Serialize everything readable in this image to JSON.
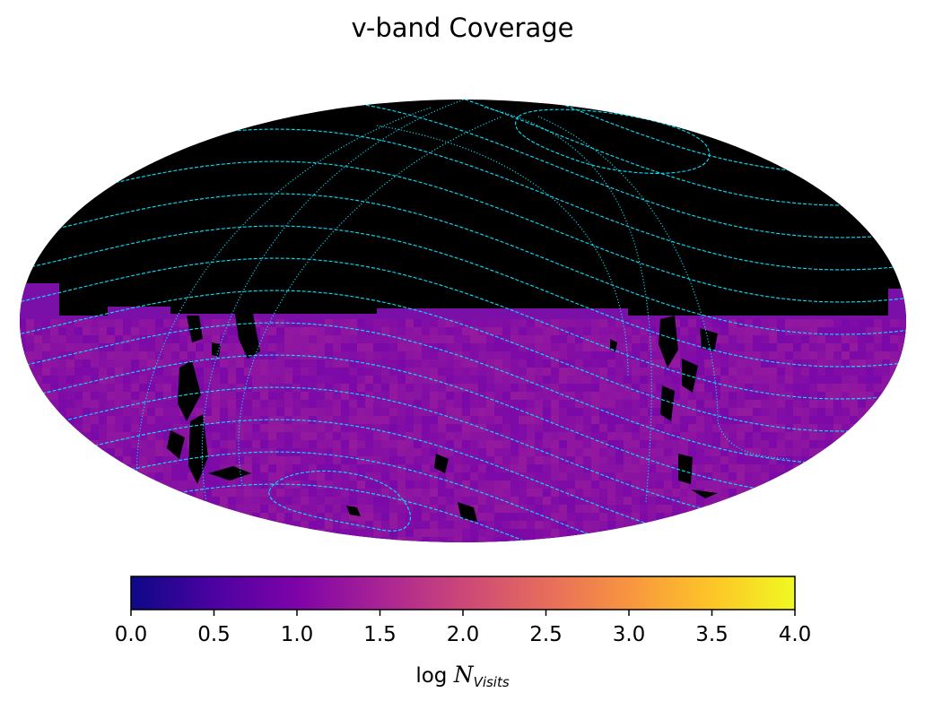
{
  "chart_data": {
    "type": "heatmap",
    "projection": "mollweide",
    "title": "v-band Coverage",
    "colormap": "plasma",
    "colorbar": {
      "label_main": "log",
      "label_var": "N",
      "label_sub": "Visits",
      "range": [
        0.0,
        4.0
      ],
      "ticks": [
        "0.0",
        "0.5",
        "1.0",
        "1.5",
        "2.0",
        "2.5",
        "3.0",
        "3.5",
        "4.0"
      ],
      "orientation": "horizontal",
      "placement": "bottom"
    },
    "no_coverage_color": "#000000",
    "coverage_color": "#7a10a8",
    "typical_log_visits": [
      0.7,
      1.5
    ],
    "covered_region": "southern sky below approx. +8 deg declination",
    "overlay": {
      "lines_color": "#00e5ff",
      "dashed": "ecliptic-style latitude circles",
      "dotted": "galactic-style meridians"
    }
  }
}
